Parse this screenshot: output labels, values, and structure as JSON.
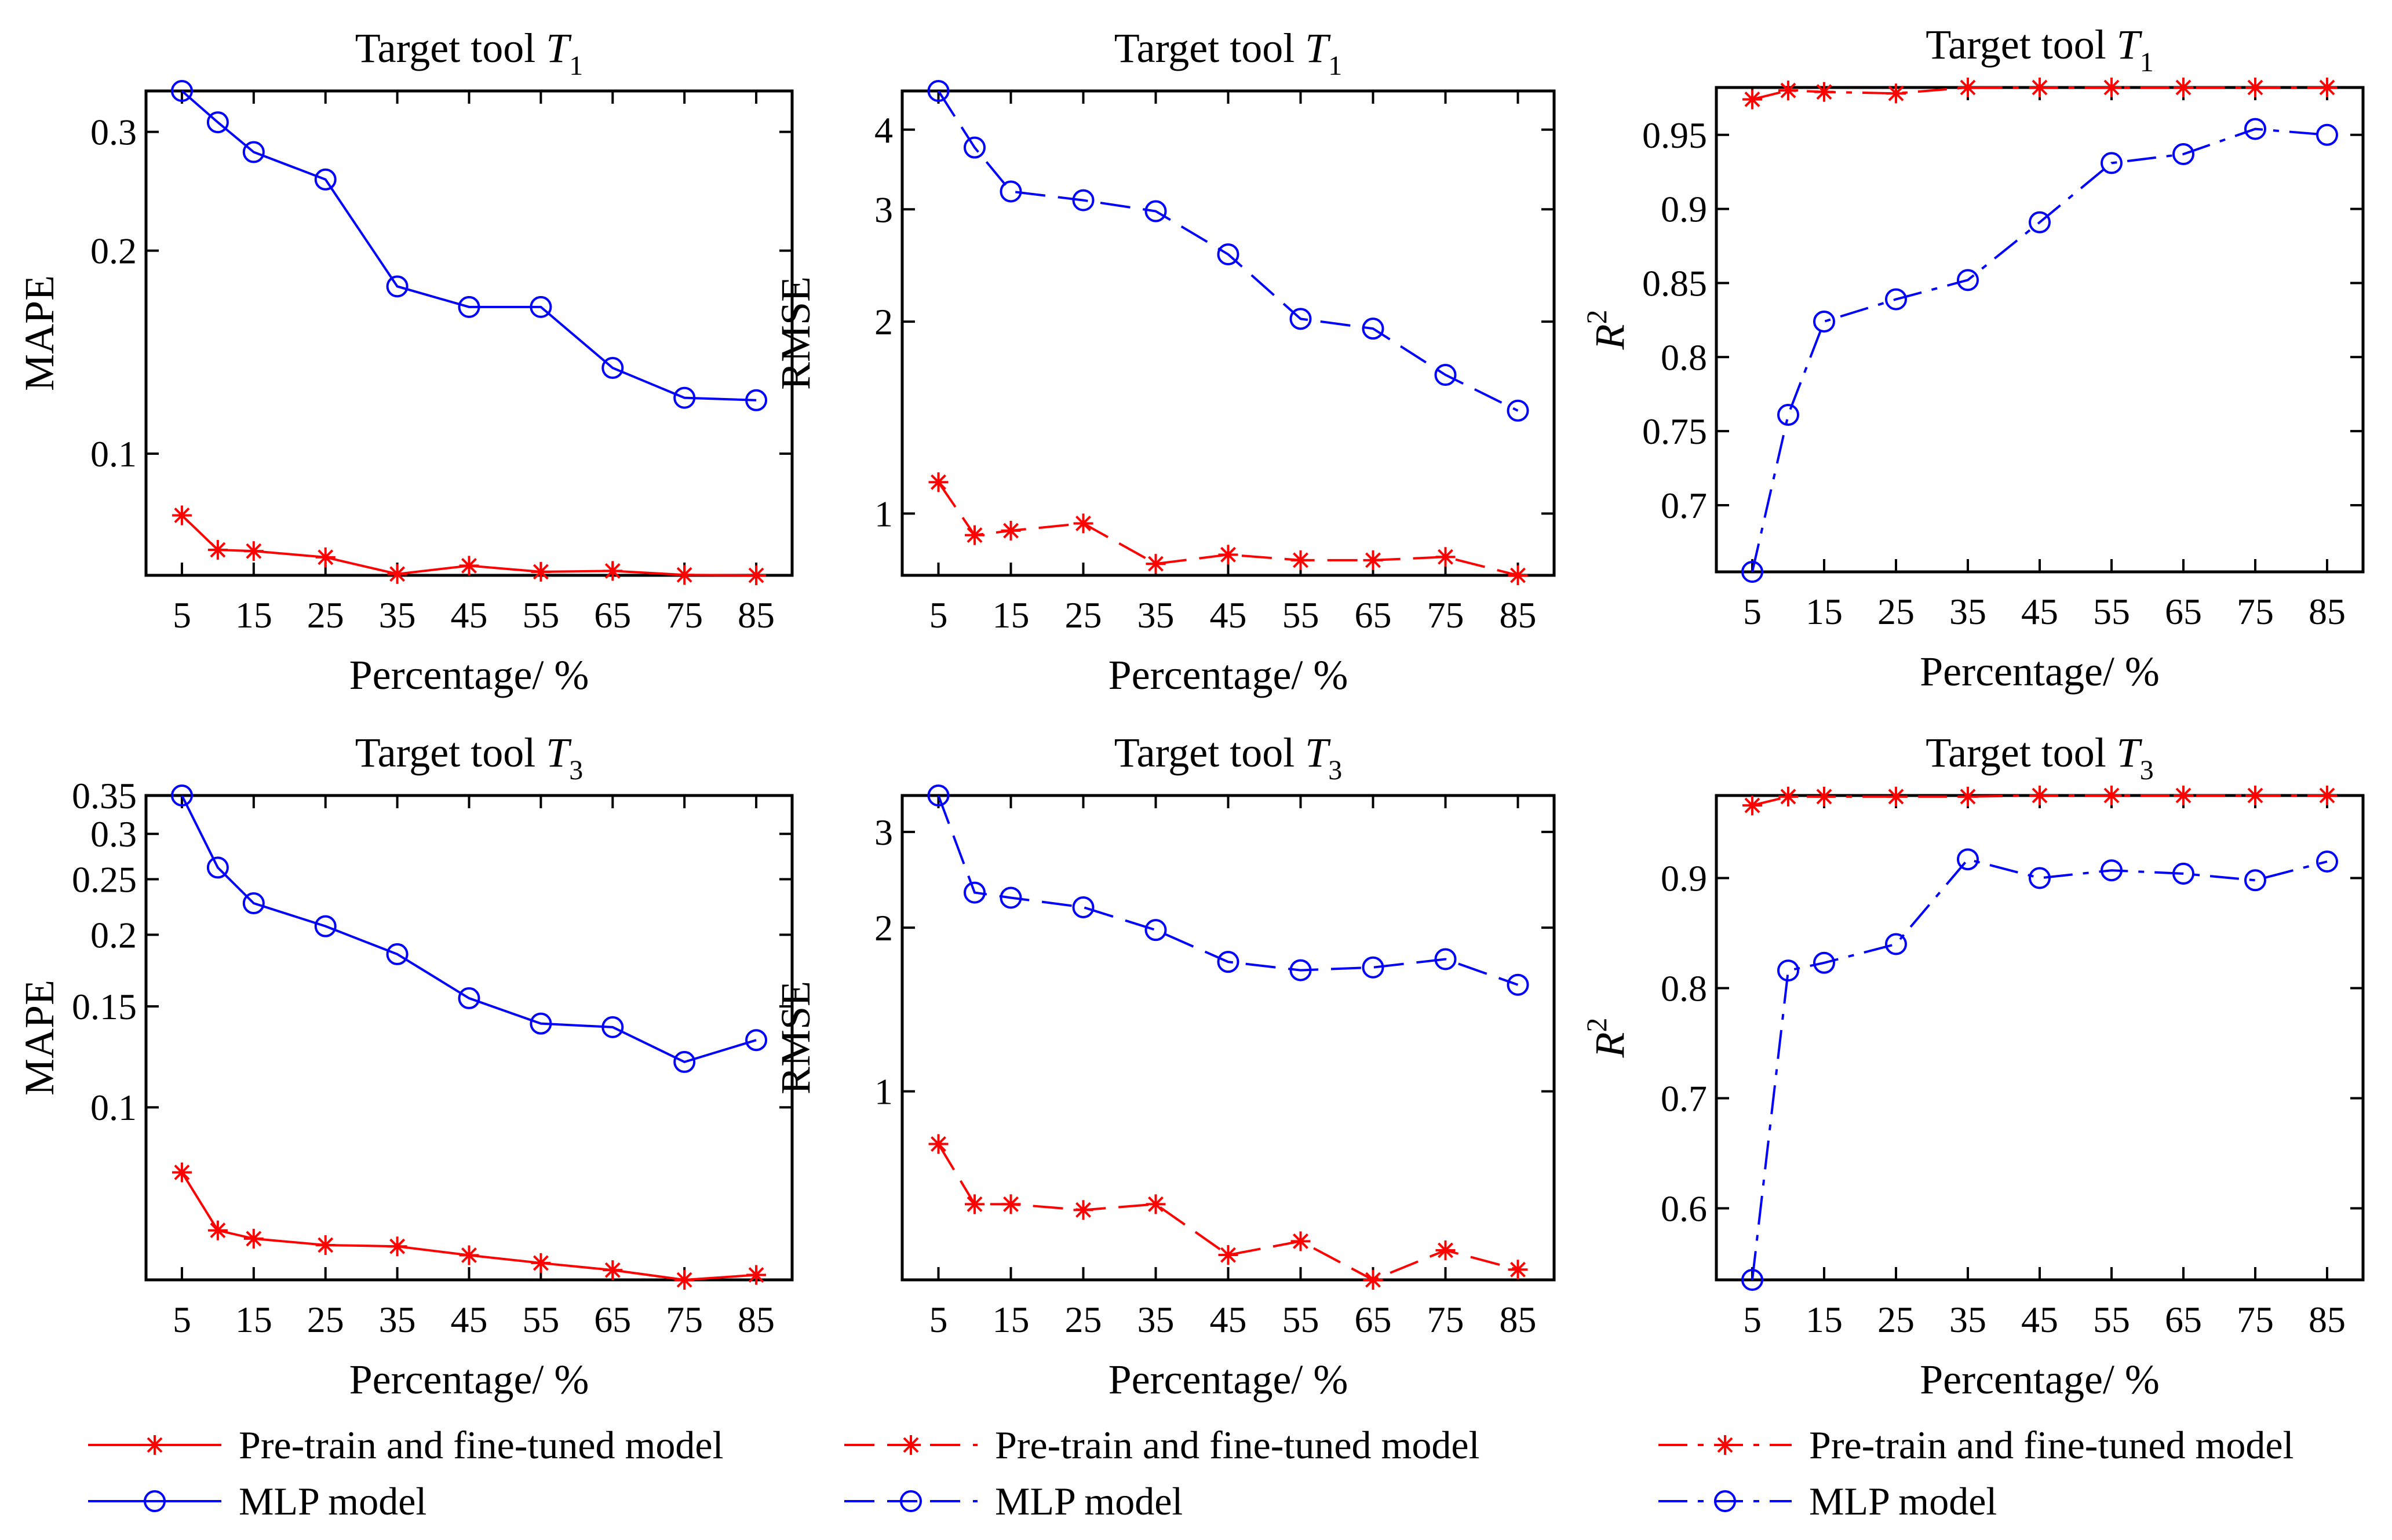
{
  "figure": {
    "legend": {
      "pretrain_label": "Pre-train and fine-tuned model",
      "mlp_label": "MLP model"
    },
    "colors": {
      "pretrain": "#ff0000",
      "mlp": "#0000ff"
    }
  },
  "chart_data": [
    {
      "type": "line",
      "title_prefix": "Target tool ",
      "title_var": "T",
      "title_sub": "1",
      "xlabel": "Percentage/ %",
      "ylabel": "MAPE",
      "yscale": "log",
      "ylim": [
        0.066,
        0.345
      ],
      "xlim": [
        0,
        90
      ],
      "yticks": [
        0.1,
        0.2,
        0.3
      ],
      "ytick_labels": [
        "0.1",
        "0.2",
        "0.3"
      ],
      "x": [
        5,
        10,
        15,
        25,
        35,
        45,
        55,
        65,
        75,
        85
      ],
      "xtick_labels": [
        "5",
        "15",
        "25",
        "35",
        "45",
        "55",
        "65",
        "75",
        "85"
      ],
      "line_style": "solid",
      "series": [
        {
          "name": "Pre-train and fine-tuned model",
          "marker": "star",
          "values": [
            0.081,
            0.072,
            0.0717,
            0.0702,
            0.0663,
            0.0682,
            0.0668,
            0.067,
            0.0661,
            0.066
          ]
        },
        {
          "name": "MLP model",
          "marker": "circle",
          "values": [
            0.345,
            0.31,
            0.28,
            0.255,
            0.177,
            0.165,
            0.165,
            0.134,
            0.121,
            0.12
          ]
        }
      ]
    },
    {
      "type": "line",
      "title_prefix": "Target tool ",
      "title_var": "T",
      "title_sub": "1",
      "xlabel": "Percentage/ %",
      "ylabel": "RMSE",
      "yscale": "log",
      "ylim": [
        0.8,
        4.6
      ],
      "xlim": [
        0,
        90
      ],
      "yticks": [
        1,
        2,
        3,
        4
      ],
      "ytick_labels": [
        "1",
        "2",
        "3",
        "4"
      ],
      "x": [
        5,
        10,
        15,
        25,
        35,
        45,
        55,
        65,
        75,
        85
      ],
      "xtick_labels": [
        "5",
        "15",
        "25",
        "35",
        "45",
        "55",
        "65",
        "75",
        "85"
      ],
      "line_style": "dashed",
      "series": [
        {
          "name": "Pre-train and fine-tuned model",
          "marker": "star",
          "values": [
            1.12,
            0.925,
            0.94,
            0.965,
            0.834,
            0.862,
            0.845,
            0.845,
            0.855,
            0.8
          ]
        },
        {
          "name": "MLP model",
          "marker": "circle",
          "values": [
            4.6,
            3.75,
            3.2,
            3.1,
            2.98,
            2.55,
            2.02,
            1.95,
            1.65,
            1.45
          ]
        }
      ]
    },
    {
      "type": "line",
      "title_prefix": "Target tool ",
      "title_var": "T",
      "title_sub": "1",
      "xlabel": "Percentage/ %",
      "ylabel": "R",
      "ylabel_sup": "2",
      "yscale": "linear",
      "ylim": [
        0.655,
        0.982
      ],
      "xlim": [
        0,
        90
      ],
      "yticks": [
        0.7,
        0.75,
        0.8,
        0.85,
        0.9,
        0.95
      ],
      "ytick_labels": [
        "0.7",
        "0.75",
        "0.8",
        "0.85",
        "0.9",
        "0.95"
      ],
      "x": [
        5,
        10,
        15,
        25,
        35,
        45,
        55,
        65,
        75,
        85
      ],
      "xtick_labels": [
        "5",
        "15",
        "25",
        "35",
        "45",
        "55",
        "65",
        "75",
        "85"
      ],
      "line_style": "dashdot",
      "series": [
        {
          "name": "Pre-train and fine-tuned model",
          "marker": "star",
          "values": [
            0.974,
            0.98,
            0.979,
            0.978,
            0.982,
            0.982,
            0.982,
            0.982,
            0.982,
            0.982
          ]
        },
        {
          "name": "MLP model",
          "marker": "circle",
          "values": [
            0.655,
            0.761,
            0.824,
            0.839,
            0.852,
            0.891,
            0.931,
            0.937,
            0.954,
            0.95
          ]
        }
      ]
    },
    {
      "type": "line",
      "title_prefix": "Target tool ",
      "title_var": "T",
      "title_sub": "3",
      "xlabel": "Percentage/ %",
      "ylabel": "MAPE",
      "yscale": "log",
      "ylim": [
        0.05,
        0.35
      ],
      "xlim": [
        0,
        90
      ],
      "yticks": [
        0.1,
        0.15,
        0.2,
        0.25,
        0.3,
        0.35
      ],
      "ytick_labels": [
        "0.1",
        "0.15",
        "0.2",
        "0.25",
        "0.3",
        "0.35"
      ],
      "x": [
        5,
        10,
        15,
        25,
        35,
        45,
        55,
        65,
        75,
        85
      ],
      "xtick_labels": [
        "5",
        "15",
        "25",
        "35",
        "45",
        "55",
        "65",
        "75",
        "85"
      ],
      "line_style": "solid",
      "series": [
        {
          "name": "Pre-train and fine-tuned model",
          "marker": "star",
          "values": [
            0.077,
            0.061,
            0.059,
            0.0575,
            0.0572,
            0.0552,
            0.0535,
            0.052,
            0.05,
            0.051
          ]
        },
        {
          "name": "MLP model",
          "marker": "circle",
          "values": [
            0.35,
            0.262,
            0.227,
            0.207,
            0.185,
            0.155,
            0.14,
            0.138,
            0.12,
            0.131
          ]
        }
      ]
    },
    {
      "type": "line",
      "title_prefix": "Target tool ",
      "title_var": "T",
      "title_sub": "3",
      "xlabel": "Percentage/ %",
      "ylabel": "RMSE",
      "yscale": "log",
      "ylim": [
        0.45,
        3.5
      ],
      "xlim": [
        0,
        90
      ],
      "yticks": [
        1,
        2,
        3
      ],
      "ytick_labels": [
        "1",
        "2",
        "3"
      ],
      "x": [
        5,
        10,
        15,
        25,
        35,
        45,
        55,
        65,
        75,
        85
      ],
      "xtick_labels": [
        "5",
        "15",
        "25",
        "35",
        "45",
        "55",
        "65",
        "75",
        "85"
      ],
      "line_style": "dashed",
      "series": [
        {
          "name": "Pre-train and fine-tuned model",
          "marker": "star",
          "values": [
            0.8,
            0.62,
            0.62,
            0.605,
            0.62,
            0.5,
            0.53,
            0.45,
            0.51,
            0.47
          ]
        },
        {
          "name": "MLP model",
          "marker": "circle",
          "values": [
            3.5,
            2.32,
            2.27,
            2.18,
            1.98,
            1.73,
            1.67,
            1.69,
            1.75,
            1.57
          ]
        }
      ]
    },
    {
      "type": "line",
      "title_prefix": "Target tool ",
      "title_var": "T",
      "title_sub": "3",
      "xlabel": "Percentage/ %",
      "ylabel": "R",
      "ylabel_sup": "2",
      "yscale": "linear",
      "ylim": [
        0.535,
        0.975
      ],
      "xlim": [
        0,
        90
      ],
      "yticks": [
        0.6,
        0.7,
        0.8,
        0.9
      ],
      "ytick_labels": [
        "0.6",
        "0.7",
        "0.8",
        "0.9"
      ],
      "x": [
        5,
        10,
        15,
        25,
        35,
        45,
        55,
        65,
        75,
        85
      ],
      "xtick_labels": [
        "5",
        "15",
        "25",
        "35",
        "45",
        "55",
        "65",
        "75",
        "85"
      ],
      "line_style": "dashdot",
      "series": [
        {
          "name": "Pre-train and fine-tuned model",
          "marker": "star",
          "values": [
            0.966,
            0.974,
            0.974,
            0.974,
            0.974,
            0.975,
            0.975,
            0.975,
            0.975,
            0.975
          ]
        },
        {
          "name": "MLP model",
          "marker": "circle",
          "values": [
            0.535,
            0.816,
            0.823,
            0.84,
            0.917,
            0.9,
            0.907,
            0.904,
            0.898,
            0.915
          ]
        }
      ]
    }
  ]
}
